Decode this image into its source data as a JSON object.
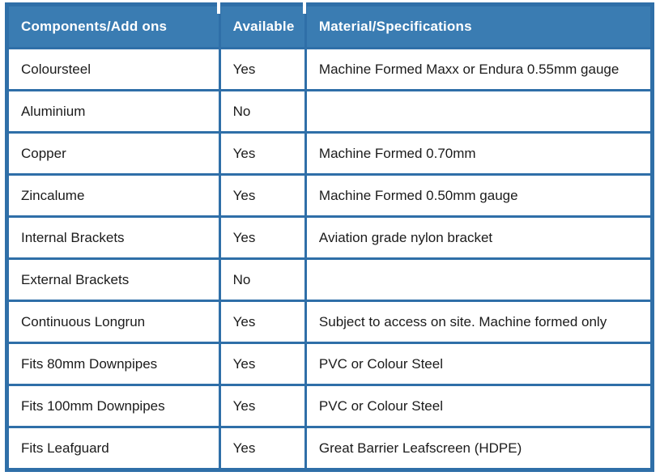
{
  "table": {
    "columns": [
      {
        "label": "Components/Add ons"
      },
      {
        "label": "Available"
      },
      {
        "label": "Material/Specifications"
      }
    ],
    "rows": [
      {
        "component": "Coloursteel",
        "available": "Yes",
        "spec": "Machine Formed Maxx or Endura 0.55mm gauge"
      },
      {
        "component": "Aluminium",
        "available": "No",
        "spec": ""
      },
      {
        "component": "Copper",
        "available": "Yes",
        "spec": "Machine Formed 0.70mm"
      },
      {
        "component": "Zincalume",
        "available": "Yes",
        "spec": "Machine Formed 0.50mm gauge"
      },
      {
        "component": "Internal Brackets",
        "available": "Yes",
        "spec": "Aviation grade nylon bracket"
      },
      {
        "component": "External Brackets",
        "available": "No",
        "spec": ""
      },
      {
        "component": "Continuous Longrun",
        "available": "Yes",
        "spec": "Subject to access on site. Machine formed only"
      },
      {
        "component": "Fits 80mm Downpipes",
        "available": "Yes",
        "spec": "PVC or Colour Steel"
      },
      {
        "component": "Fits 100mm Downpipes",
        "available": "Yes",
        "spec": "PVC or Colour Steel"
      },
      {
        "component": "Fits Leafguard",
        "available": "Yes",
        "spec": "Great Barrier Leafscreen (HDPE)"
      }
    ],
    "colors": {
      "header_bg": "#3a7cb2",
      "grid_border": "#2f6fa8",
      "header_text": "#ffffff",
      "body_text": "#1b1b1b",
      "row_bg": "#ffffff"
    }
  }
}
